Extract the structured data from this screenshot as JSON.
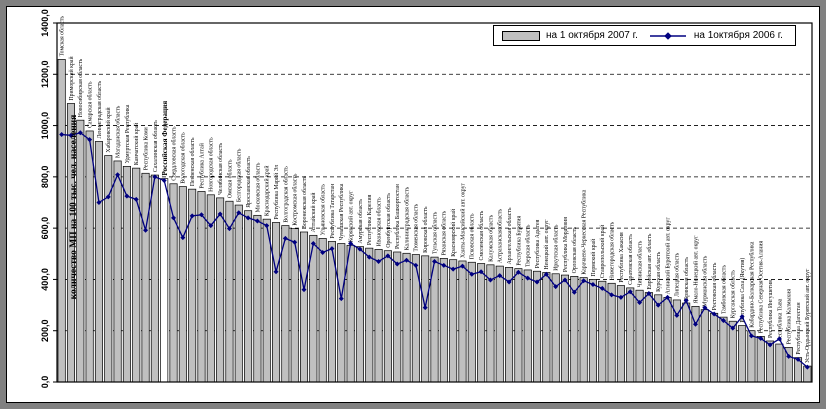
{
  "frame": {
    "border_color": "#818181",
    "background": "#ffffff"
  },
  "chart_data": {
    "type": "bar",
    "combo": "bar+line",
    "title": "",
    "xlabel": "",
    "ylabel": "количество МП на 100 тыс. чел. населения",
    "ylim": [
      0,
      1400
    ],
    "ytick_step": 200,
    "yticks": [
      "0,0",
      "200,0",
      "400,0",
      "600,0",
      "800,0",
      "1000,0",
      "1200,0",
      "1400,0"
    ],
    "grid": "horizontal-dashed",
    "legend_position": "top-right-inside",
    "highlight_category": "Российская Федерация",
    "bar_color": "#c0c0c0",
    "highlight_bar_color": "#ffffff",
    "line_color": "#000080",
    "categories": [
      "Томская область",
      "Приморский край",
      "Новосибирская область",
      "Самарская область",
      "Ленинградская область",
      "Хабаровский край",
      "Магаданская область",
      "Удмуртская Республика",
      "Камчатский край",
      "Республика Коми",
      "Сахалинская область",
      "Российская Федерация",
      "Свердловская область",
      "Вологодская область",
      "Пензенская область",
      "Республика Алтай",
      "Новгородская область",
      "Челябинская область",
      "Омская область",
      "Белгородская область",
      "Ярославская область",
      "Московская область",
      "Краснодарский край",
      "Республика Марий Эл",
      "Волгоградская область",
      "Костромская область",
      "Воронежская область",
      "Алтайский край",
      "Ульяновская область",
      "Республика Татарстан",
      "Чувашская Республика",
      "Корякский авт. округ",
      "Амурская область",
      "Республика Карелия",
      "Ивановская область",
      "Оренбургская область",
      "Республика Башкортостан",
      "Калининградская область",
      "Тюменская область",
      "Кировская область",
      "Тульская область",
      "Рязанская область",
      "Красноярский край",
      "Ханты-Мансийский авт. округ",
      "Псковская область",
      "Смоленская область",
      "Калужская область",
      "Астраханская область",
      "Архангельская область",
      "Республика Бурятия",
      "Тверская область",
      "Республика Адыгея",
      "Ненецкий авт. округ",
      "Иркутская область",
      "Республика Мордовия",
      "Орловская область",
      "Карачаево-Черкесская Республика",
      "Пермский край",
      "Ставропольский край",
      "Нижегородская область",
      "Республика Хакасия",
      "Саратовская область",
      "Читинская область",
      "Еврейская авт. область",
      "Курская область",
      "Агинский Бурятский авт. округ",
      "Липецкая область",
      "Брянская область",
      "Ямало-Ненецкий авт. округ",
      "Мурманская область",
      "Ростовская область",
      "Тамбовская область",
      "Курганская область",
      "Республика Саха (Якутия)",
      "Кабардино-Балкарская Республика",
      "Республика Северная Осетия-Алания",
      "Республика Ингушетия",
      "Республика Тыва",
      "Республика Калмыкия",
      "Республика Дагестан",
      "Усть-Ордынский Бурятский авт. округ"
    ],
    "series": [
      {
        "name": "на 1 октября 2007 г.",
        "type": "bar",
        "color": "#c0c0c0",
        "values": [
          1258,
          1086,
          1021,
          979,
          938,
          883,
          862,
          841,
          834,
          814,
          807,
          793,
          773,
          762,
          752,
          743,
          730,
          718,
          705,
          690,
          668,
          650,
          635,
          622,
          610,
          598,
          585,
          572,
          560,
          548,
          540,
          533,
          528,
          522,
          517,
          512,
          507,
          502,
          497,
          492,
          487,
          482,
          477,
          472,
          467,
          462,
          457,
          452,
          447,
          442,
          437,
          432,
          427,
          422,
          417,
          412,
          407,
          400,
          393,
          385,
          376,
          367,
          358,
          349,
          340,
          330,
          320,
          308,
          295,
          282,
          268,
          253,
          237,
          220,
          200,
          178,
          160,
          148,
          135,
          95,
          62
        ]
      },
      {
        "name": "на 1октября 2006 г.",
        "type": "line",
        "color": "#000080",
        "marker": "diamond",
        "values": [
          965,
          962,
          972,
          945,
          700,
          722,
          808,
          725,
          712,
          592,
          800,
          786,
          640,
          563,
          648,
          652,
          610,
          655,
          598,
          660,
          640,
          628,
          610,
          430,
          560,
          545,
          360,
          540,
          505,
          520,
          325,
          540,
          518,
          487,
          470,
          492,
          460,
          475,
          455,
          290,
          470,
          455,
          440,
          452,
          420,
          430,
          398,
          415,
          390,
          428,
          405,
          390,
          420,
          372,
          398,
          350,
          395,
          380,
          365,
          340,
          330,
          352,
          310,
          345,
          300,
          330,
          260,
          318,
          225,
          290,
          265,
          240,
          210,
          255,
          180,
          170,
          145,
          168,
          100,
          88,
          58
        ]
      }
    ]
  }
}
